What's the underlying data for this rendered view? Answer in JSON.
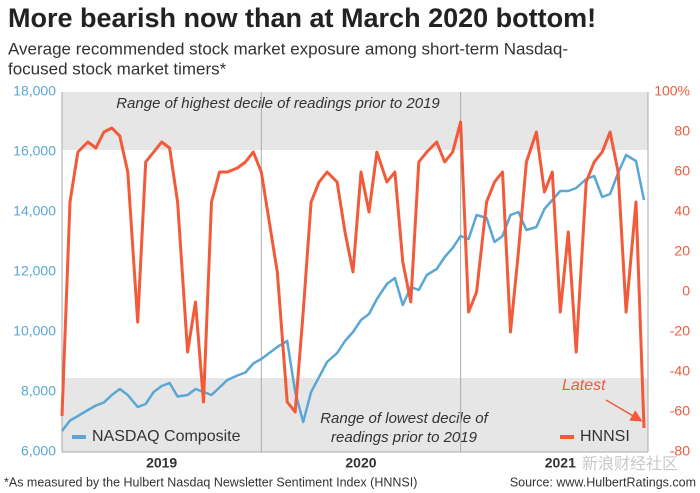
{
  "chart_data": {
    "type": "line",
    "title": "More bearish now than at March 2020 bottom!",
    "subtitle": [
      "Average recommended stock market exposure among short-term Nasdaq-",
      "focused stock market timers*"
    ],
    "x": [
      2019.0,
      2019.04,
      2019.08,
      2019.13,
      2019.17,
      2019.21,
      2019.25,
      2019.29,
      2019.33,
      2019.38,
      2019.42,
      2019.46,
      2019.5,
      2019.54,
      2019.58,
      2019.63,
      2019.67,
      2019.71,
      2019.75,
      2019.79,
      2019.83,
      2019.88,
      2019.92,
      2019.96,
      2020.0,
      2020.04,
      2020.08,
      2020.13,
      2020.17,
      2020.21,
      2020.25,
      2020.29,
      2020.33,
      2020.38,
      2020.42,
      2020.46,
      2020.5,
      2020.54,
      2020.58,
      2020.63,
      2020.67,
      2020.71,
      2020.75,
      2020.79,
      2020.83,
      2020.88,
      2020.92,
      2020.96,
      2021.0,
      2021.04,
      2021.08,
      2021.13,
      2021.17,
      2021.21,
      2021.25,
      2021.29,
      2021.33,
      2021.38,
      2021.42,
      2021.46,
      2021.5,
      2021.54,
      2021.58,
      2021.63,
      2021.67,
      2021.71,
      2021.75,
      2021.79,
      2021.83,
      2021.88,
      2021.92
    ],
    "xlim": [
      2019,
      2021.94
    ],
    "xticks": [
      {
        "value": 2019.5,
        "label": "2019"
      },
      {
        "value": 2020.5,
        "label": "2020"
      },
      {
        "value": 2021.5,
        "label": "2021"
      }
    ],
    "year_lines": [
      2019,
      2020,
      2021
    ],
    "ylim": [
      6000,
      18000
    ],
    "yticks": [
      {
        "value": 6000,
        "label": "6,000"
      },
      {
        "value": 8000,
        "label": "8,000"
      },
      {
        "value": 10000,
        "label": "10,000"
      },
      {
        "value": 12000,
        "label": "12,000"
      },
      {
        "value": 14000,
        "label": "14,000"
      },
      {
        "value": 16000,
        "label": "16,000"
      },
      {
        "value": 18000,
        "label": "18,000"
      }
    ],
    "y2lim": [
      -80,
      100
    ],
    "y2ticks": [
      -80,
      -60,
      -40,
      -20,
      0,
      20,
      40,
      60,
      80,
      {
        "value": 100,
        "label": "100%"
      }
    ],
    "grid": false,
    "series": [
      {
        "name": "NASDAQ Composite",
        "color": "#5aa7d6",
        "axis": "y",
        "values": [
          6700,
          7050,
          7200,
          7400,
          7550,
          7650,
          7900,
          8100,
          7900,
          7500,
          7600,
          8000,
          8200,
          8300,
          7850,
          7900,
          8100,
          8000,
          7900,
          8150,
          8400,
          8550,
          8650,
          8950,
          9100,
          9300,
          9500,
          9700,
          8000,
          7000,
          8000,
          8500,
          9000,
          9300,
          9700,
          10000,
          10400,
          10600,
          11100,
          11600,
          11800,
          10900,
          11500,
          11400,
          11900,
          12100,
          12500,
          12800,
          13200,
          13100,
          13900,
          13800,
          13000,
          13200,
          13900,
          14000,
          13400,
          13500,
          14100,
          14400,
          14700,
          14700,
          14800,
          15100,
          15200,
          14500,
          14600,
          15300,
          15900,
          15700,
          14400
        ]
      },
      {
        "name": "HNNSI",
        "color": "#f25a3a",
        "axis": "y2",
        "values": [
          -62,
          45,
          70,
          75,
          72,
          80,
          82,
          78,
          60,
          -15,
          65,
          70,
          75,
          72,
          45,
          -30,
          -5,
          -55,
          45,
          60,
          60,
          62,
          65,
          70,
          60,
          35,
          10,
          -55,
          -60,
          -10,
          45,
          55,
          60,
          55,
          30,
          10,
          60,
          40,
          70,
          55,
          60,
          15,
          -5,
          65,
          70,
          75,
          65,
          70,
          85,
          -10,
          0,
          45,
          55,
          60,
          -20,
          20,
          65,
          80,
          50,
          60,
          -10,
          30,
          -30,
          55,
          65,
          70,
          80,
          60,
          -10,
          45,
          -68
        ]
      }
    ],
    "bands": [
      {
        "range": [
          71,
          100
        ],
        "label": [
          "Range of highest decile of readings prior to 2019"
        ]
      },
      {
        "range": [
          -80,
          -43
        ],
        "label": [
          "Range of lowest decile of",
          "readings prior to 2019"
        ]
      }
    ],
    "annotation": "Latest",
    "footnote": "*As measured by the Hulbert Nasdaq Newsletter Sentiment Index (HNNSI)",
    "source": "Source: www.HulbertRatings.com",
    "watermark": "新浪财经社区"
  }
}
